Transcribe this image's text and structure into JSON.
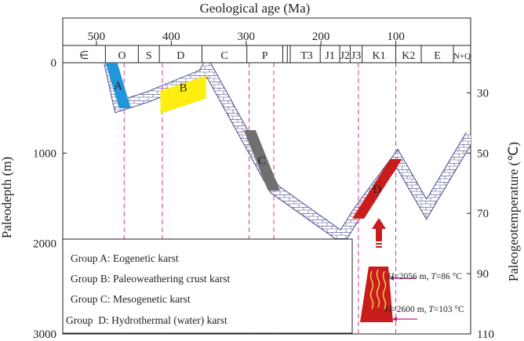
{
  "chart_data": {
    "type": "line",
    "title": "",
    "xlabel": "Geological age (Ma)",
    "ylabel": "Paleodepth (m)",
    "y2label": "Paleogeotemperature (℃)",
    "x_ticks": [
      500,
      400,
      300,
      200,
      100
    ],
    "y_ticks": [
      0,
      1000,
      2000,
      3000
    ],
    "y2_ticks": [
      30,
      50,
      70,
      90,
      110
    ],
    "xlim": [
      545,
      0
    ],
    "ylim": [
      0,
      3000
    ],
    "y2lim": [
      20,
      110
    ],
    "periods": [
      {
        "label": "∈",
        "start": 545,
        "end": 488
      },
      {
        "label": "O",
        "start": 488,
        "end": 444
      },
      {
        "label": "S",
        "start": 444,
        "end": 416
      },
      {
        "label": "D",
        "start": 416,
        "end": 359
      },
      {
        "label": "C",
        "start": 359,
        "end": 299
      },
      {
        "label": "P",
        "start": 299,
        "end": 251
      },
      {
        "label": "T3",
        "start": 237,
        "end": 201
      },
      {
        "label": "J1",
        "start": 201,
        "end": 175
      },
      {
        "label": "J2",
        "start": 175,
        "end": 161
      },
      {
        "label": "J3",
        "start": 161,
        "end": 145
      },
      {
        "label": "K1",
        "start": 145,
        "end": 100
      },
      {
        "label": "K2",
        "start": 100,
        "end": 66
      },
      {
        "label": "E",
        "start": 66,
        "end": 23
      },
      {
        "label": "N+Q",
        "start": 23,
        "end": 0
      }
    ],
    "series": [
      {
        "values_desc": "burial depth curve",
        "x": [
          483,
          470,
          432,
          358,
          352,
          262,
          172,
          150,
          98,
          59,
          0
        ],
        "y": [
          0,
          480,
          380,
          130,
          50,
          1400,
          1930,
          1640,
          1060,
          1620,
          800
        ]
      }
    ],
    "groups": [
      {
        "label": "A",
        "color": "#2196db",
        "x_range": [
          480,
          462
        ],
        "y_range": [
          0,
          500
        ]
      },
      {
        "label": "B",
        "color": "#ffee10",
        "x_range": [
          414,
          354
        ],
        "y_range": [
          150,
          400
        ]
      },
      {
        "label": "C",
        "color": "#707070",
        "x_range": [
          295,
          263
        ],
        "y_range": [
          750,
          1410
        ]
      },
      {
        "label": "D",
        "color": "#c91c1c",
        "x_range": [
          150,
          100
        ],
        "y_range": [
          1070,
          1720
        ]
      }
    ],
    "guide_lines_x": [
      463,
      412,
      296,
      263,
      150,
      100
    ],
    "legend": [
      "Group A: Eogenetic karst",
      "Group B: Paleoweathering crust karst",
      "Group C: Mesogenetic karst",
      "Group  D: Hydrothermal (water) karst"
    ],
    "annotations": [
      {
        "H_label": "H",
        "H_value": "=2056 m, ",
        "T_label": "T",
        "T_value": "=86 °C"
      },
      {
        "H_label": "H",
        "H_value": "=2600 m, ",
        "T_label": "T",
        "T_value": "=103 °C"
      }
    ],
    "colors": {
      "curve_stroke": "#4a4f8a",
      "guide": "#e0338f",
      "volcano": "#c91c1c",
      "volcano_flame": "#f2d34a"
    }
  }
}
